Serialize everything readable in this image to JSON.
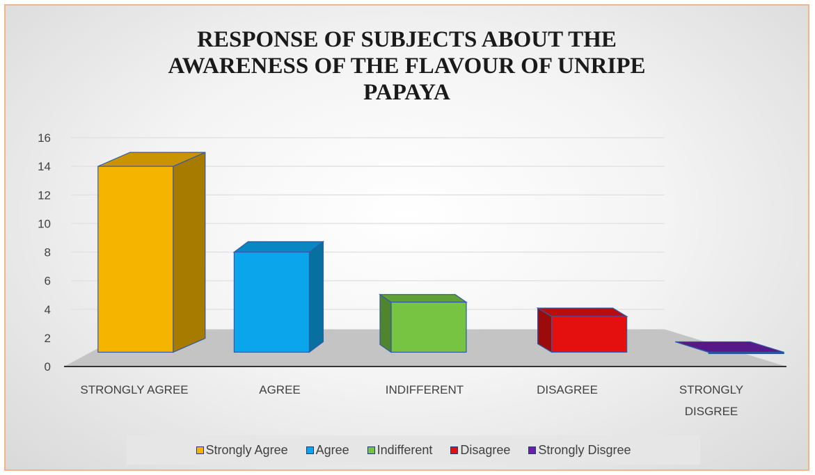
{
  "chart_data": {
    "type": "bar",
    "title_lines": [
      "RESPONSE OF SUBJECTS ABOUT THE",
      "AWARENESS  OF THE  FLAVOUR OF UNRIPE",
      "PAPAYA"
    ],
    "categories": [
      {
        "line1": "STRONGLY AGREE",
        "line2": ""
      },
      {
        "line1": "AGREE",
        "line2": ""
      },
      {
        "line1": "INDIFFERENT",
        "line2": ""
      },
      {
        "line1": "DISAGREE",
        "line2": ""
      },
      {
        "line1": "STRONGLY",
        "line2": "DISGREE"
      }
    ],
    "series": [
      {
        "name": "Strongly Agree",
        "values": [
          14,
          null,
          null,
          null,
          null
        ],
        "color": "#f5b400"
      },
      {
        "name": "Agree",
        "values": [
          null,
          8,
          null,
          null,
          null
        ],
        "color": "#0ba5ec"
      },
      {
        "name": "Indifferent",
        "values": [
          null,
          null,
          4.5,
          null,
          null
        ],
        "color": "#76c442"
      },
      {
        "name": "Disagree",
        "values": [
          null,
          null,
          null,
          3.5,
          null
        ],
        "color": "#e41010"
      },
      {
        "name": "Strongly Disgree",
        "values": [
          null,
          null,
          null,
          null,
          1
        ],
        "color": "#6a1fa8"
      }
    ],
    "values": [
      14,
      8,
      4.5,
      3.5,
      1
    ],
    "ylim": [
      0,
      16
    ],
    "yticks": [
      "0",
      "2",
      "4",
      "6",
      "8",
      "10",
      "12",
      "14",
      "16"
    ],
    "grid": true,
    "legend_position": "bottom",
    "style": "3d-column"
  }
}
